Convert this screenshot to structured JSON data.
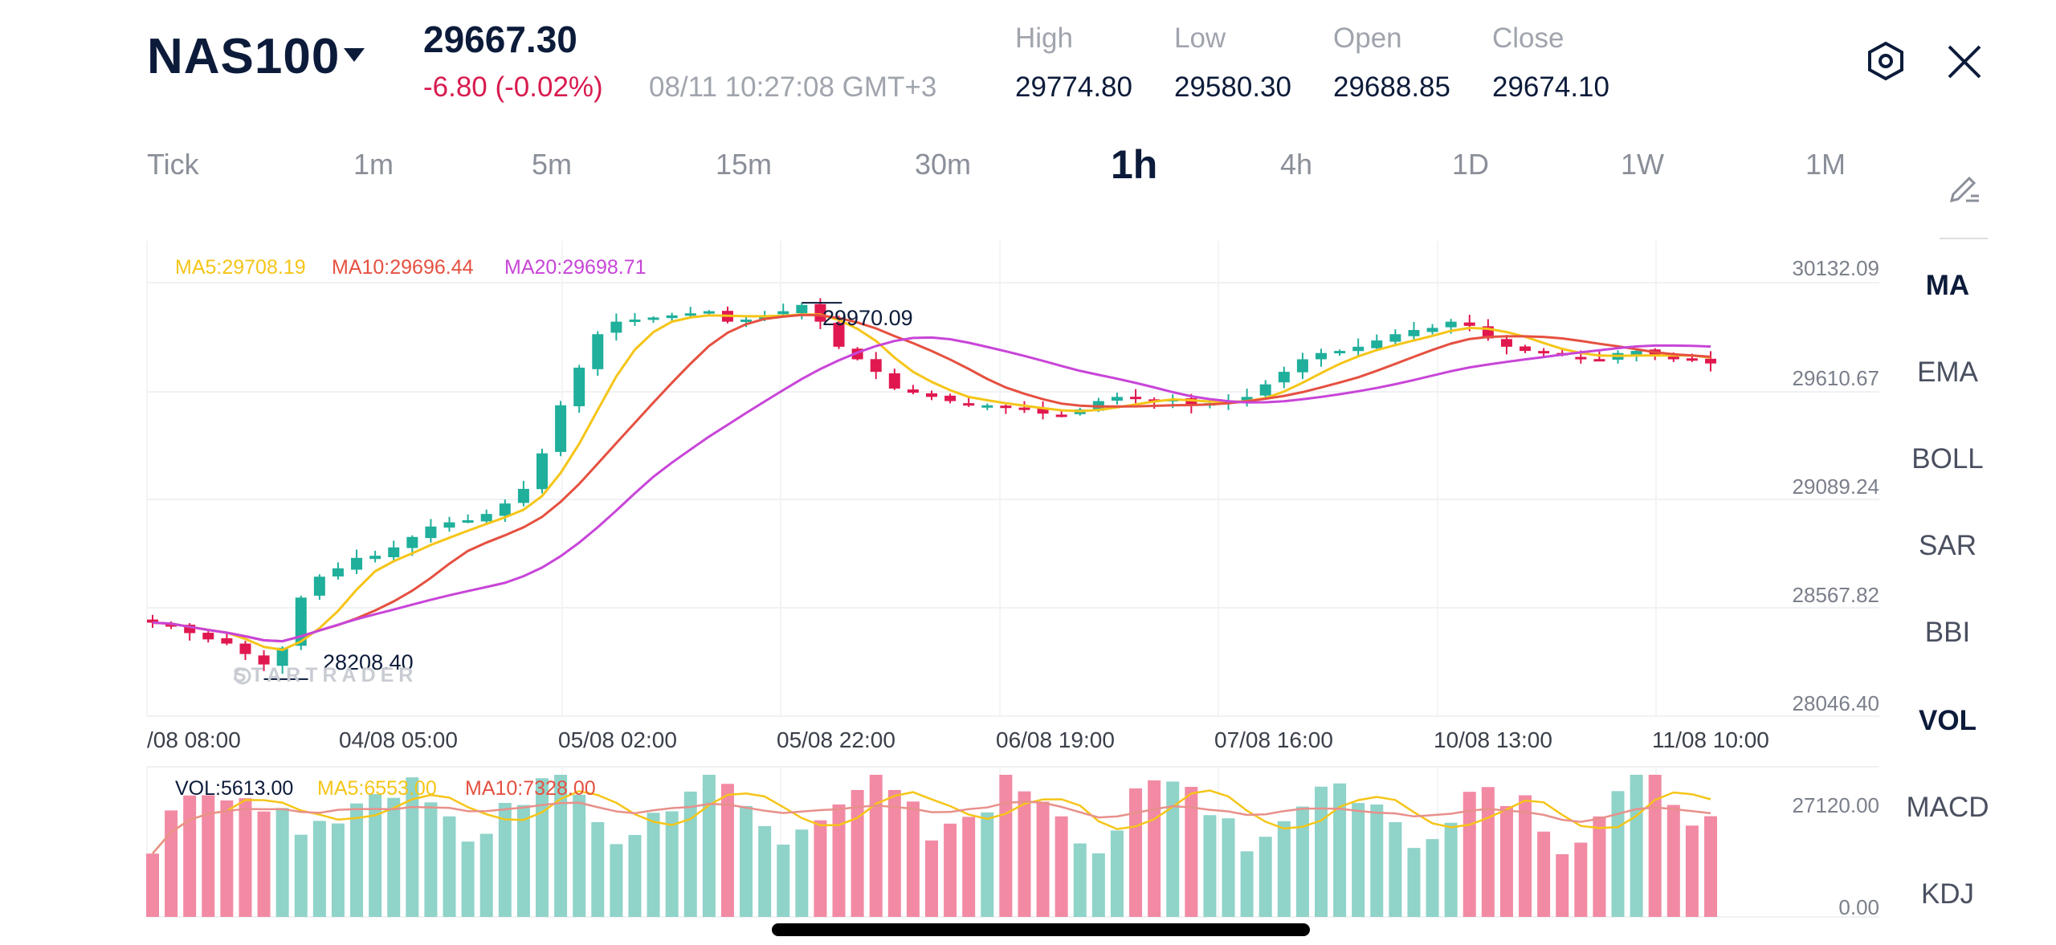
{
  "header": {
    "symbol": "NAS100",
    "price": "29667.30",
    "change": "-6.80 (-0.02%)",
    "timestamp": "08/11 10:27:08 GMT+3",
    "stats": [
      {
        "label": "High",
        "value": "29774.80"
      },
      {
        "label": "Low",
        "value": "29580.30"
      },
      {
        "label": "Open",
        "value": "29688.85"
      },
      {
        "label": "Close",
        "value": "29674.10"
      }
    ],
    "settings_icon": "hexagon-settings-icon",
    "close_icon": "close-icon"
  },
  "timeframes": [
    {
      "label": "Tick",
      "active": false
    },
    {
      "label": "1m",
      "active": false
    },
    {
      "label": "5m",
      "active": false
    },
    {
      "label": "15m",
      "active": false
    },
    {
      "label": "30m",
      "active": false
    },
    {
      "label": "1h",
      "active": true
    },
    {
      "label": "4h",
      "active": false
    },
    {
      "label": "1D",
      "active": false
    },
    {
      "label": "1W",
      "active": false
    },
    {
      "label": "1M",
      "active": false
    }
  ],
  "indicators": {
    "draw_icon": "pencil-draw-icon",
    "items": [
      {
        "label": "MA",
        "active": true
      },
      {
        "label": "EMA",
        "active": false
      },
      {
        "label": "BOLL",
        "active": false
      },
      {
        "label": "SAR",
        "active": false
      },
      {
        "label": "BBI",
        "active": false
      },
      {
        "label": "VOL",
        "active": true
      },
      {
        "label": "MACD",
        "active": false
      },
      {
        "label": "KDJ",
        "active": false
      }
    ]
  },
  "main_legend": {
    "ma5": "MA5:29708.19",
    "ma10": "MA10:29696.44",
    "ma20": "MA20:29698.71"
  },
  "vol_legend": {
    "vol": "VOL:5613.00",
    "ma5": "MA5:6553.00",
    "ma10": "MA10:7328.00"
  },
  "watermark": "STARTRADER",
  "colors": {
    "up": "#1faf9b",
    "down": "#e0184f",
    "ma5": "#f5c518",
    "ma10": "#e55040",
    "ma20": "#c845d8",
    "vol_up": "#8fd3c9",
    "vol_down": "#f28aa4"
  },
  "chart_data": [
    {
      "type": "candlestick",
      "y_ticks": [
        "30132.09",
        "29610.67",
        "29089.24",
        "28567.82",
        "28046.40"
      ],
      "ylim": [
        28046.4,
        30132.09
      ],
      "x_ticks": [
        "/08 08:00",
        "04/08 05:00",
        "05/08 02:00",
        "05/08 22:00",
        "06/08 19:00",
        "07/08 16:00",
        "10/08 13:00",
        "11/08 10:00"
      ],
      "annotations": [
        {
          "label": "29970.09",
          "value": 29970.09
        },
        {
          "label": "28208.40",
          "value": 28208.4
        }
      ],
      "close_path": [
        28440,
        28430,
        28390,
        28360,
        28340,
        28290,
        28240,
        28320,
        28560,
        28660,
        28700,
        28750,
        28760,
        28800,
        28850,
        28900,
        28920,
        28930,
        28960,
        29010,
        29080,
        29250,
        29480,
        29660,
        29820,
        29880,
        29890,
        29900,
        29910,
        29920,
        29930,
        29880,
        29890,
        29910,
        29930,
        29960,
        29880,
        29760,
        29700,
        29640,
        29560,
        29540,
        29520,
        29500,
        29480,
        29480,
        29470,
        29460,
        29440,
        29430,
        29460,
        29500,
        29520,
        29510,
        29500,
        29510,
        29480,
        29490,
        29500,
        29520,
        29580,
        29640,
        29700,
        29730,
        29740,
        29760,
        29790,
        29820,
        29840,
        29850,
        29880,
        29860,
        29800,
        29760,
        29740,
        29730,
        29720,
        29700,
        29700,
        29730,
        29740,
        29720,
        29700,
        29700,
        29680
      ]
    },
    {
      "type": "bar",
      "name": "volume",
      "y_ticks": [
        "27120.00",
        "0.00"
      ],
      "ylim": [
        0,
        27120
      ]
    }
  ]
}
